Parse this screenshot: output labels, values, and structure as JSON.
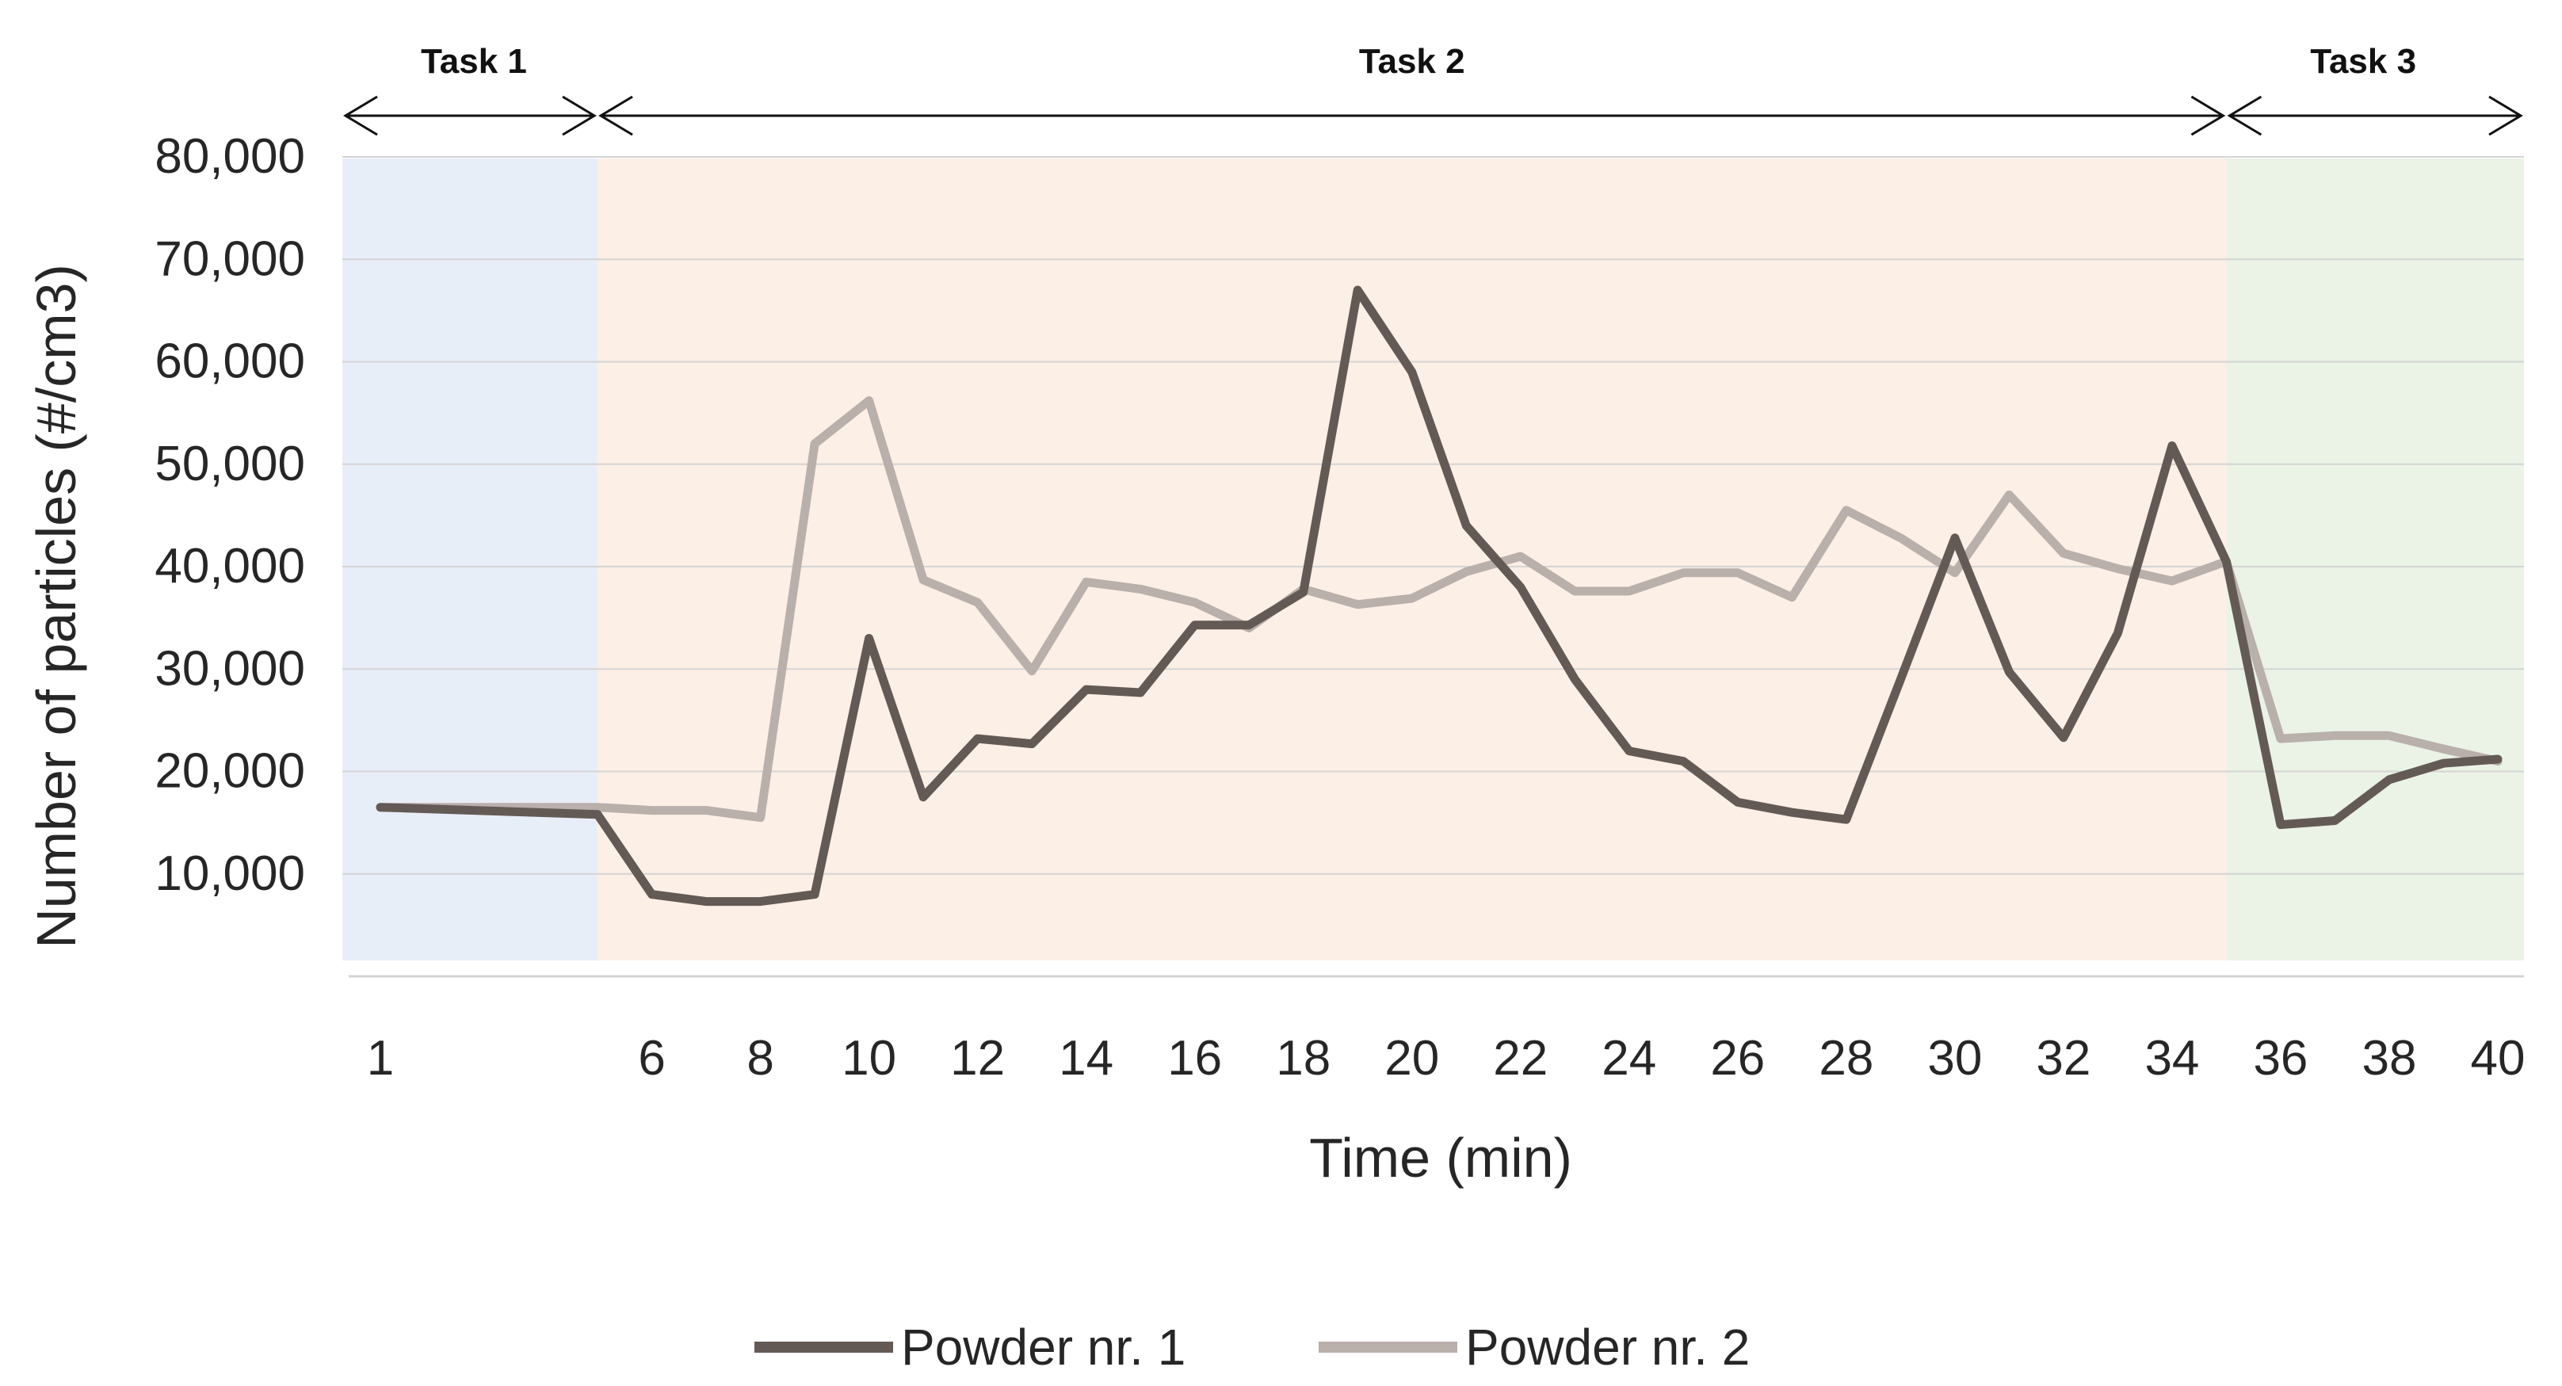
{
  "chart_data": {
    "type": "line",
    "title": "",
    "xlabel": "Time (min)",
    "ylabel": "Number of particles (#/cm3)",
    "ylim": [
      0,
      80000
    ],
    "xlim": [
      1,
      40
    ],
    "grid": true,
    "legend_position": "bottom",
    "y_ticks": [
      "10,000",
      "20,000",
      "30,000",
      "40,000",
      "50,000",
      "60,000",
      "70,000",
      "80,000"
    ],
    "y_tick_values": [
      10000,
      20000,
      30000,
      40000,
      50000,
      60000,
      70000,
      80000
    ],
    "x_tick_values": [
      1,
      6,
      8,
      10,
      12,
      14,
      16,
      18,
      20,
      22,
      24,
      26,
      28,
      30,
      32,
      34,
      36,
      38,
      40
    ],
    "x_ticks": [
      "1",
      "6",
      "8",
      "10",
      "12",
      "14",
      "16",
      "18",
      "20",
      "22",
      "24",
      "26",
      "28",
      "30",
      "32",
      "34",
      "36",
      "38",
      "40"
    ],
    "x": [
      1,
      5,
      6,
      7,
      8,
      9,
      10,
      11,
      12,
      13,
      14,
      15,
      16,
      17,
      18,
      19,
      20,
      21,
      22,
      23,
      24,
      25,
      26,
      27,
      28,
      29,
      30,
      31,
      32,
      33,
      34,
      35,
      36,
      37,
      38,
      39,
      40
    ],
    "series": [
      {
        "name": "Powder nr. 1",
        "color": "#645a55",
        "values": [
          16500,
          15800,
          8000,
          7300,
          7300,
          8000,
          33000,
          17500,
          23200,
          22700,
          28000,
          27700,
          34300,
          34300,
          37500,
          67000,
          59000,
          44000,
          38000,
          29000,
          22000,
          21000,
          17000,
          16000,
          15300,
          29000,
          42800,
          29700,
          23300,
          33500,
          51800,
          40500,
          14800,
          15200,
          19200,
          20800,
          21200
        ]
      },
      {
        "name": "Powder nr. 2",
        "color": "#b9afab",
        "values": [
          16500,
          16500,
          16200,
          16200,
          15500,
          52000,
          56200,
          38700,
          36500,
          29800,
          38500,
          37800,
          36500,
          34000,
          37800,
          36300,
          36900,
          39500,
          41000,
          37600,
          37600,
          39400,
          39400,
          37000,
          45500,
          42800,
          39400,
          47000,
          41300,
          39800,
          38600,
          40500,
          23200,
          23500,
          23500,
          22200,
          21000
        ]
      }
    ],
    "regions": [
      {
        "label": "Task 1",
        "x_start": 1,
        "x_end": 5,
        "color": "#e8eef8"
      },
      {
        "label": "Task 2",
        "x_start": 5,
        "x_end": 35,
        "color": "#fcefe6"
      },
      {
        "label": "Task 3",
        "x_start": 35,
        "x_end": 40,
        "color": "#eaf3e6"
      }
    ]
  }
}
